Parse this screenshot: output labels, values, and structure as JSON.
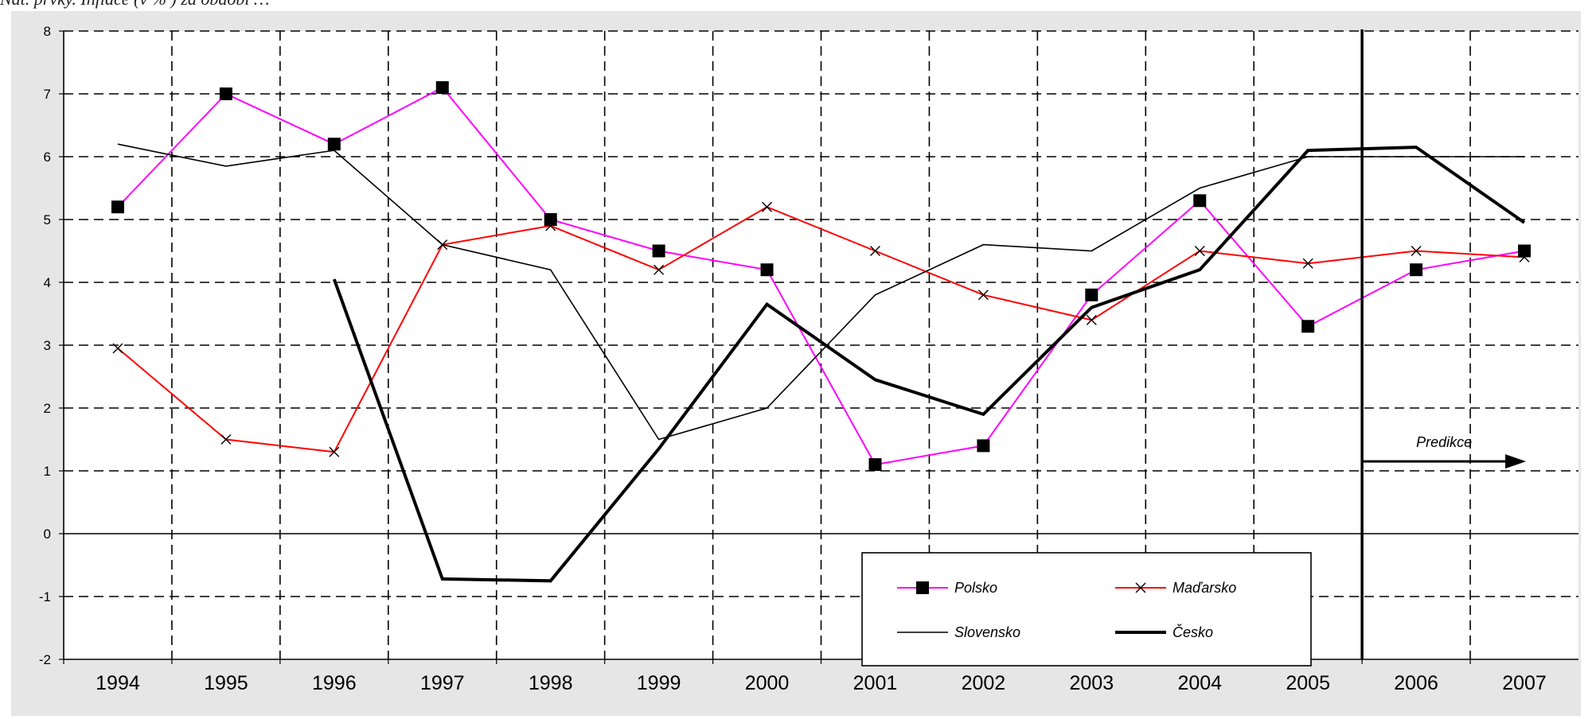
{
  "header": {
    "caption": "Nat. prvky. Inflace (v % ) za období …"
  },
  "chart_data": {
    "type": "line",
    "title": "",
    "xlabel": "",
    "ylabel": "",
    "categories": [
      "1994",
      "1995",
      "1996",
      "1997",
      "1998",
      "1999",
      "2000",
      "2001",
      "2002",
      "2003",
      "2004",
      "2005",
      "2006",
      "2007"
    ],
    "ylim": [
      -2,
      8
    ],
    "yticks": [
      -2,
      -1,
      0,
      1,
      2,
      3,
      4,
      5,
      6,
      7,
      8
    ],
    "grid": true,
    "legend_position": "bottom-center",
    "series": [
      {
        "name": "Polsko",
        "color": "#ff00ff",
        "marker": "square",
        "marker_color": "#000000",
        "width": 2,
        "values": [
          5.2,
          7.0,
          6.2,
          7.1,
          5.0,
          4.5,
          4.2,
          1.1,
          1.4,
          3.8,
          5.3,
          3.3,
          4.2,
          4.5
        ]
      },
      {
        "name": "Maďarsko",
        "color": "#ff0000",
        "marker": "x",
        "marker_color": "#000000",
        "width": 2,
        "values": [
          2.95,
          1.5,
          1.3,
          4.6,
          4.9,
          4.2,
          5.2,
          4.5,
          3.8,
          3.4,
          4.5,
          4.3,
          4.5,
          4.4
        ]
      },
      {
        "name": "Slovensko",
        "color": "#000000",
        "marker": "none",
        "width": 1.6,
        "values": [
          6.2,
          5.85,
          6.1,
          4.6,
          4.2,
          1.5,
          2.0,
          3.8,
          4.6,
          4.5,
          5.5,
          6.0,
          6.0,
          6.0
        ]
      },
      {
        "name": "Česko",
        "color": "#000000",
        "marker": "none",
        "width": 4,
        "values": [
          null,
          null,
          4.05,
          -0.72,
          -0.75,
          1.35,
          3.65,
          2.45,
          1.9,
          3.6,
          4.2,
          6.1,
          6.15,
          4.95
        ]
      }
    ],
    "prediction": {
      "label": "Predikce",
      "after_category": "2005"
    }
  }
}
